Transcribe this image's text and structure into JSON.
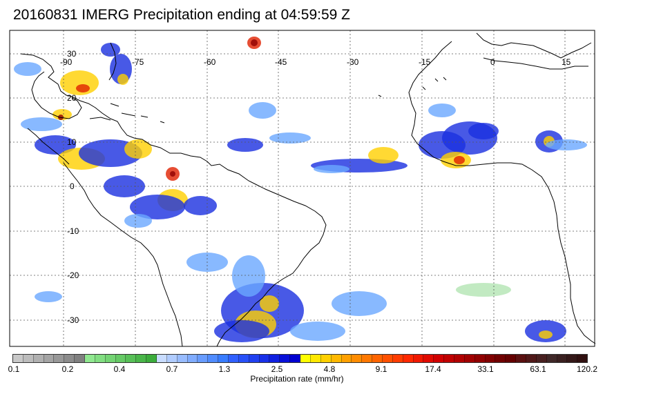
{
  "title": "20160831 IMERG Precipitation ending at 04:59:59 Z",
  "map": {
    "lon_labels": [
      "-90",
      "-75",
      "-60",
      "-45",
      "-30",
      "-15",
      "0",
      "15"
    ],
    "lat_labels": [
      "30",
      "20",
      "10",
      "0",
      "-10",
      "-20",
      "-30"
    ],
    "grid": "dotted",
    "land_outline_color": "#000000"
  },
  "colorbar": {
    "label": "Precipitation rate (mm/hr)",
    "tick_labels": [
      "0.1",
      "0.2",
      "0.4",
      "0.7",
      "1.3",
      "2.5",
      "4.8",
      "9.1",
      "17.4",
      "33.1",
      "63.1",
      "120.2"
    ],
    "colors": [
      "#c8c8c8",
      "#bcbcbc",
      "#b0b0b0",
      "#a4a4a4",
      "#989898",
      "#8c8c8c",
      "#808080",
      "#90e890",
      "#82de82",
      "#74d474",
      "#66ca66",
      "#58c058",
      "#4ab64a",
      "#3cac3c",
      "#c8dcff",
      "#b0ccff",
      "#98bcff",
      "#80acff",
      "#689cff",
      "#508cff",
      "#387cff",
      "#3060ff",
      "#2850f8",
      "#2040f0",
      "#1830e8",
      "#1020e0",
      "#0810d8",
      "#0000d0",
      "#ffff00",
      "#ffe800",
      "#ffd000",
      "#ffb800",
      "#ffa000",
      "#ff8c00",
      "#ff7800",
      "#ff6400",
      "#ff5000",
      "#ff3c00",
      "#ff2800",
      "#f01800",
      "#e00a00",
      "#d00000",
      "#c00000",
      "#b00000",
      "#a00000",
      "#900000",
      "#800000",
      "#700000",
      "#640000",
      "#5a1010",
      "#501818",
      "#482020",
      "#402828",
      "#3a2020",
      "#341818",
      "#301010"
    ]
  }
}
